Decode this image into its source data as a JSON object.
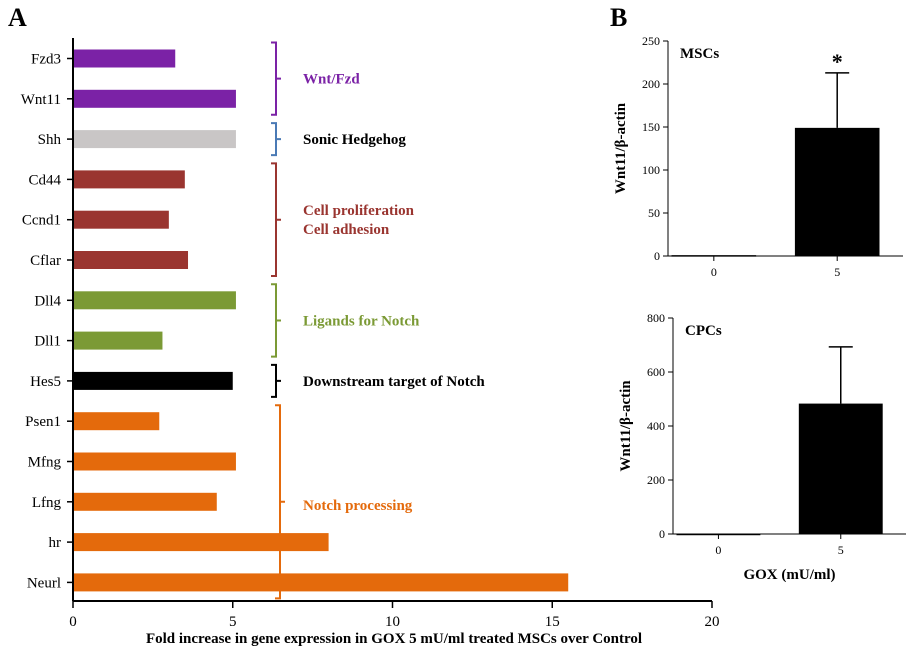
{
  "chart_data": [
    {
      "panel": "A",
      "type": "bar",
      "orientation": "horizontal",
      "categories": [
        "Fzd3",
        "Wnt11",
        "Shh",
        "Cd44",
        "Ccnd1",
        "Cflar",
        "Dll4",
        "Dll1",
        "Hes5",
        "Psen1",
        "Mfng",
        "Lfng",
        "hr",
        "Neurl"
      ],
      "values": [
        3.2,
        5.1,
        5.1,
        3.5,
        3.0,
        3.6,
        5.1,
        2.8,
        5.0,
        2.7,
        5.1,
        4.5,
        8.0,
        15.5
      ],
      "colors": [
        "#7b22a6",
        "#7b22a6",
        "#c9c6c6",
        "#9a3530",
        "#9a3530",
        "#9a3530",
        "#7b9a35",
        "#7b9a35",
        "#000000",
        "#e46a0c",
        "#e46a0c",
        "#e46a0c",
        "#e46a0c",
        "#e46a0c"
      ],
      "xlabel": "Fold increase in gene expression in GOX 5 mU/ml treated MSCs over Control",
      "xlim": [
        0,
        20
      ],
      "xticks": [
        "0",
        "5",
        "10",
        "15",
        "20"
      ],
      "groups": [
        {
          "label": [
            "Wnt/Fzd"
          ],
          "from": 0,
          "to": 1,
          "color": "#7b22a6"
        },
        {
          "label": [
            "Sonic Hedgehog"
          ],
          "from": 2,
          "to": 2,
          "color": "#4a7ab5",
          "text_color": "#000000"
        },
        {
          "label": [
            "Cell proliferation",
            "Cell adhesion"
          ],
          "from": 3,
          "to": 5,
          "color": "#9a3530"
        },
        {
          "label": [
            "Ligands for Notch"
          ],
          "from": 6,
          "to": 7,
          "color": "#7b9a35"
        },
        {
          "label": [
            "Downstream target of Notch"
          ],
          "from": 8,
          "to": 8,
          "color": "#000000"
        },
        {
          "label": [
            "Notch processing"
          ],
          "from": 9,
          "to": 13,
          "color": "#e46a0c"
        }
      ]
    },
    {
      "panel": "B",
      "type": "bar",
      "title": "MSCs",
      "categories": [
        "0",
        "5"
      ],
      "values": [
        1,
        149
      ],
      "errors": [
        0,
        64
      ],
      "ylim": [
        0,
        250
      ],
      "yticks": [
        0,
        50,
        100,
        150,
        200,
        250
      ],
      "ylabel": "Wnt11/β-actin",
      "annotation": "*"
    },
    {
      "type": "bar",
      "title": "CPCs",
      "categories": [
        "0",
        "5"
      ],
      "values": [
        1,
        483
      ],
      "errors": [
        0,
        210
      ],
      "ylim": [
        0,
        800
      ],
      "yticks": [
        0,
        200,
        400,
        600,
        800
      ],
      "ylabel": "Wnt11/β-actin",
      "xlabel": "GOX (mU/ml)"
    }
  ]
}
